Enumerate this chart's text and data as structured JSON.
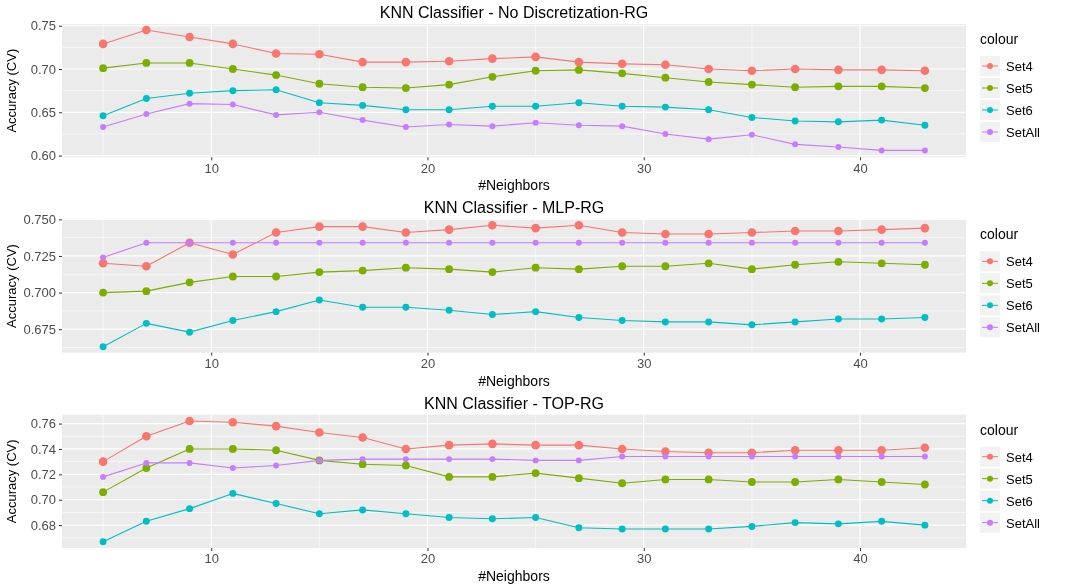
{
  "chart_data": [
    {
      "type": "line",
      "title": "KNN Classifier - No Discretization-RG",
      "xlabel": "#Neighbors",
      "ylabel": "Accuracy (CV)",
      "legend_title": "colour",
      "legend": "right",
      "grid": true,
      "marker": "circle",
      "line_style": "solid",
      "x": [
        5,
        7,
        9,
        11,
        13,
        15,
        17,
        19,
        21,
        23,
        25,
        27,
        29,
        31,
        33,
        35,
        37,
        39,
        41,
        43
      ],
      "xlim": [
        3.1,
        44.9
      ],
      "xticks": [
        {
          "value": 5,
          "label": null
        },
        10,
        {
          "value": 15,
          "label": null
        },
        20,
        {
          "value": 25,
          "label": null
        },
        30,
        {
          "value": 35,
          "label": null
        },
        40
      ],
      "ylim": [
        0.598,
        0.752
      ],
      "yticks": [
        {
          "value": 0.6,
          "label": "0.60"
        },
        {
          "value": 0.625,
          "label": null
        },
        {
          "value": 0.65,
          "label": "0.65"
        },
        {
          "value": 0.675,
          "label": null
        },
        {
          "value": 0.7,
          "label": "0.70"
        },
        {
          "value": 0.725,
          "label": null
        },
        {
          "value": 0.75,
          "label": "0.75"
        }
      ],
      "series": [
        {
          "name": "Set4",
          "color": "#f8766d",
          "values": [
            0.729,
            0.745,
            0.737,
            0.729,
            0.718,
            0.717,
            0.708,
            0.708,
            0.709,
            0.712,
            0.714,
            0.708,
            0.706,
            0.705,
            0.7,
            0.698,
            0.7,
            0.699,
            0.699,
            0.698
          ]
        },
        {
          "name": "Set5",
          "color": "#7cae00",
          "values": [
            0.701,
            0.707,
            0.707,
            0.7,
            0.693,
            0.683,
            0.679,
            0.678,
            0.682,
            0.691,
            0.698,
            0.699,
            0.695,
            0.69,
            0.685,
            0.682,
            0.679,
            0.68,
            0.68,
            0.678
          ]
        },
        {
          "name": "Set6",
          "color": "#00bfc4",
          "values": [
            0.646,
            0.666,
            0.672,
            0.675,
            0.676,
            0.661,
            0.658,
            0.653,
            0.653,
            0.657,
            0.657,
            0.661,
            0.657,
            0.656,
            0.653,
            0.644,
            0.64,
            0.639,
            0.641,
            0.635
          ]
        },
        {
          "name": "SetAll",
          "color": "#c77cff",
          "values": [
            0.633,
            0.648,
            0.66,
            0.659,
            0.647,
            0.65,
            0.641,
            0.633,
            0.636,
            0.634,
            0.638,
            0.635,
            0.634,
            0.625,
            0.619,
            0.624,
            0.613,
            0.61,
            0.606,
            0.606
          ]
        }
      ]
    },
    {
      "type": "line",
      "title": "KNN Classifier - MLP-RG",
      "xlabel": "#Neighbors",
      "ylabel": "Accuracy (CV)",
      "legend_title": "colour",
      "legend": "right",
      "grid": true,
      "marker": "circle",
      "line_style": "solid",
      "x": [
        5,
        7,
        9,
        11,
        13,
        15,
        17,
        19,
        21,
        23,
        25,
        27,
        29,
        31,
        33,
        35,
        37,
        39,
        41,
        43
      ],
      "xlim": [
        3.1,
        44.9
      ],
      "xticks": [
        {
          "value": 5,
          "label": null
        },
        10,
        {
          "value": 15,
          "label": null
        },
        20,
        {
          "value": 25,
          "label": null
        },
        30,
        {
          "value": 35,
          "label": null
        },
        40
      ],
      "ylim": [
        0.659,
        0.75
      ],
      "yticks": [
        {
          "value": 0.6625,
          "label": null
        },
        {
          "value": 0.675,
          "label": "0.675"
        },
        {
          "value": 0.6875,
          "label": null
        },
        {
          "value": 0.7,
          "label": "0.700"
        },
        {
          "value": 0.7125,
          "label": null
        },
        {
          "value": 0.725,
          "label": "0.725"
        },
        {
          "value": 0.7375,
          "label": null
        },
        {
          "value": 0.75,
          "label": "0.750"
        }
      ],
      "series": [
        {
          "name": "Set4",
          "color": "#f8766d",
          "values": [
            0.72,
            0.718,
            0.734,
            0.726,
            0.741,
            0.745,
            0.745,
            0.741,
            0.743,
            0.746,
            0.744,
            0.746,
            0.741,
            0.74,
            0.74,
            0.741,
            0.742,
            0.742,
            0.743,
            0.744
          ]
        },
        {
          "name": "Set5",
          "color": "#7cae00",
          "values": [
            0.7,
            0.701,
            0.707,
            0.711,
            0.711,
            0.714,
            0.715,
            0.717,
            0.716,
            0.714,
            0.717,
            0.716,
            0.718,
            0.718,
            0.72,
            0.716,
            0.719,
            0.721,
            0.72,
            0.719
          ]
        },
        {
          "name": "Set6",
          "color": "#00bfc4",
          "values": [
            0.663,
            0.679,
            0.673,
            0.681,
            0.687,
            0.695,
            0.69,
            0.69,
            0.688,
            0.685,
            0.687,
            0.683,
            0.681,
            0.68,
            0.68,
            0.678,
            0.68,
            0.682,
            0.682,
            0.683
          ]
        },
        {
          "name": "SetAll",
          "color": "#c77cff",
          "values": [
            0.724,
            0.734,
            0.734,
            0.734,
            0.734,
            0.734,
            0.734,
            0.734,
            0.734,
            0.734,
            0.734,
            0.734,
            0.734,
            0.734,
            0.734,
            0.734,
            0.734,
            0.734,
            0.734,
            0.734
          ]
        }
      ]
    },
    {
      "type": "line",
      "title": "KNN Classifier - TOP-RG",
      "xlabel": "#Neighbors",
      "ylabel": "Accuracy (CV)",
      "legend_title": "colour",
      "legend": "right",
      "grid": true,
      "marker": "circle",
      "line_style": "solid",
      "x": [
        5,
        7,
        9,
        11,
        13,
        15,
        17,
        19,
        21,
        23,
        25,
        27,
        29,
        31,
        33,
        35,
        37,
        39,
        41,
        43
      ],
      "xlim": [
        3.1,
        44.9
      ],
      "xticks": [
        {
          "value": 5,
          "label": null
        },
        10,
        {
          "value": 15,
          "label": null
        },
        20,
        {
          "value": 25,
          "label": null
        },
        30,
        {
          "value": 35,
          "label": null
        },
        40
      ],
      "ylim": [
        0.662,
        0.767
      ],
      "yticks": [
        {
          "value": 0.67,
          "label": null
        },
        {
          "value": 0.68,
          "label": "0.68"
        },
        {
          "value": 0.69,
          "label": null
        },
        {
          "value": 0.7,
          "label": "0.70"
        },
        {
          "value": 0.71,
          "label": null
        },
        {
          "value": 0.72,
          "label": "0.72"
        },
        {
          "value": 0.73,
          "label": null
        },
        {
          "value": 0.74,
          "label": "0.74"
        },
        {
          "value": 0.75,
          "label": null
        },
        {
          "value": 0.76,
          "label": "0.76"
        }
      ],
      "series": [
        {
          "name": "Set4",
          "color": "#f8766d",
          "values": [
            0.73,
            0.75,
            0.762,
            0.761,
            0.758,
            0.753,
            0.749,
            0.74,
            0.743,
            0.744,
            0.743,
            0.743,
            0.74,
            0.738,
            0.737,
            0.737,
            0.739,
            0.739,
            0.739,
            0.741
          ]
        },
        {
          "name": "Set5",
          "color": "#7cae00",
          "values": [
            0.706,
            0.725,
            0.74,
            0.74,
            0.739,
            0.731,
            0.728,
            0.727,
            0.718,
            0.718,
            0.721,
            0.717,
            0.713,
            0.716,
            0.716,
            0.714,
            0.714,
            0.716,
            0.714,
            0.712
          ]
        },
        {
          "name": "Set6",
          "color": "#00bfc4",
          "values": [
            0.667,
            0.683,
            0.693,
            0.705,
            0.697,
            0.689,
            0.692,
            0.689,
            0.686,
            0.685,
            0.686,
            0.678,
            0.677,
            0.677,
            0.677,
            0.679,
            0.682,
            0.681,
            0.683,
            0.68
          ]
        },
        {
          "name": "SetAll",
          "color": "#c77cff",
          "values": [
            0.718,
            0.729,
            0.729,
            0.725,
            0.727,
            0.731,
            0.732,
            0.732,
            0.732,
            0.732,
            0.731,
            0.731,
            0.734,
            0.734,
            0.734,
            0.734,
            0.734,
            0.734,
            0.734,
            0.734
          ]
        }
      ]
    }
  ]
}
